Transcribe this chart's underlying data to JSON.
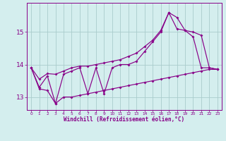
{
  "background_color": "#d4eeee",
  "grid_color": "#b8dede",
  "line_color": "#880088",
  "xlabel": "Windchill (Refroidissement éolien,°C)",
  "x_hours": [
    0,
    1,
    2,
    3,
    4,
    5,
    6,
    7,
    8,
    9,
    10,
    11,
    12,
    13,
    14,
    15,
    16,
    17,
    18,
    19,
    20,
    21,
    22,
    23
  ],
  "main_line": [
    13.9,
    13.3,
    13.65,
    12.8,
    13.7,
    13.8,
    13.9,
    13.1,
    13.9,
    13.1,
    13.9,
    14.0,
    14.0,
    14.1,
    14.4,
    14.7,
    15.0,
    15.6,
    15.45,
    15.05,
    14.85,
    13.9,
    13.9,
    13.85
  ],
  "upper_line": [
    13.9,
    13.55,
    13.72,
    13.7,
    13.8,
    13.9,
    13.95,
    13.95,
    14.0,
    14.05,
    14.1,
    14.15,
    14.25,
    14.35,
    14.55,
    14.75,
    15.05,
    15.6,
    15.1,
    15.05,
    15.0,
    14.9,
    13.9,
    13.85
  ],
  "lower_line": [
    13.9,
    13.25,
    13.2,
    12.8,
    13.0,
    13.0,
    13.05,
    13.1,
    13.15,
    13.2,
    13.25,
    13.3,
    13.35,
    13.4,
    13.45,
    13.5,
    13.55,
    13.6,
    13.65,
    13.7,
    13.75,
    13.8,
    13.85,
    13.85
  ],
  "ylim": [
    12.6,
    15.9
  ],
  "yticks": [
    13,
    14,
    15
  ],
  "xlim": [
    -0.5,
    23.5
  ],
  "figsize": [
    3.2,
    2.0
  ],
  "dpi": 100
}
